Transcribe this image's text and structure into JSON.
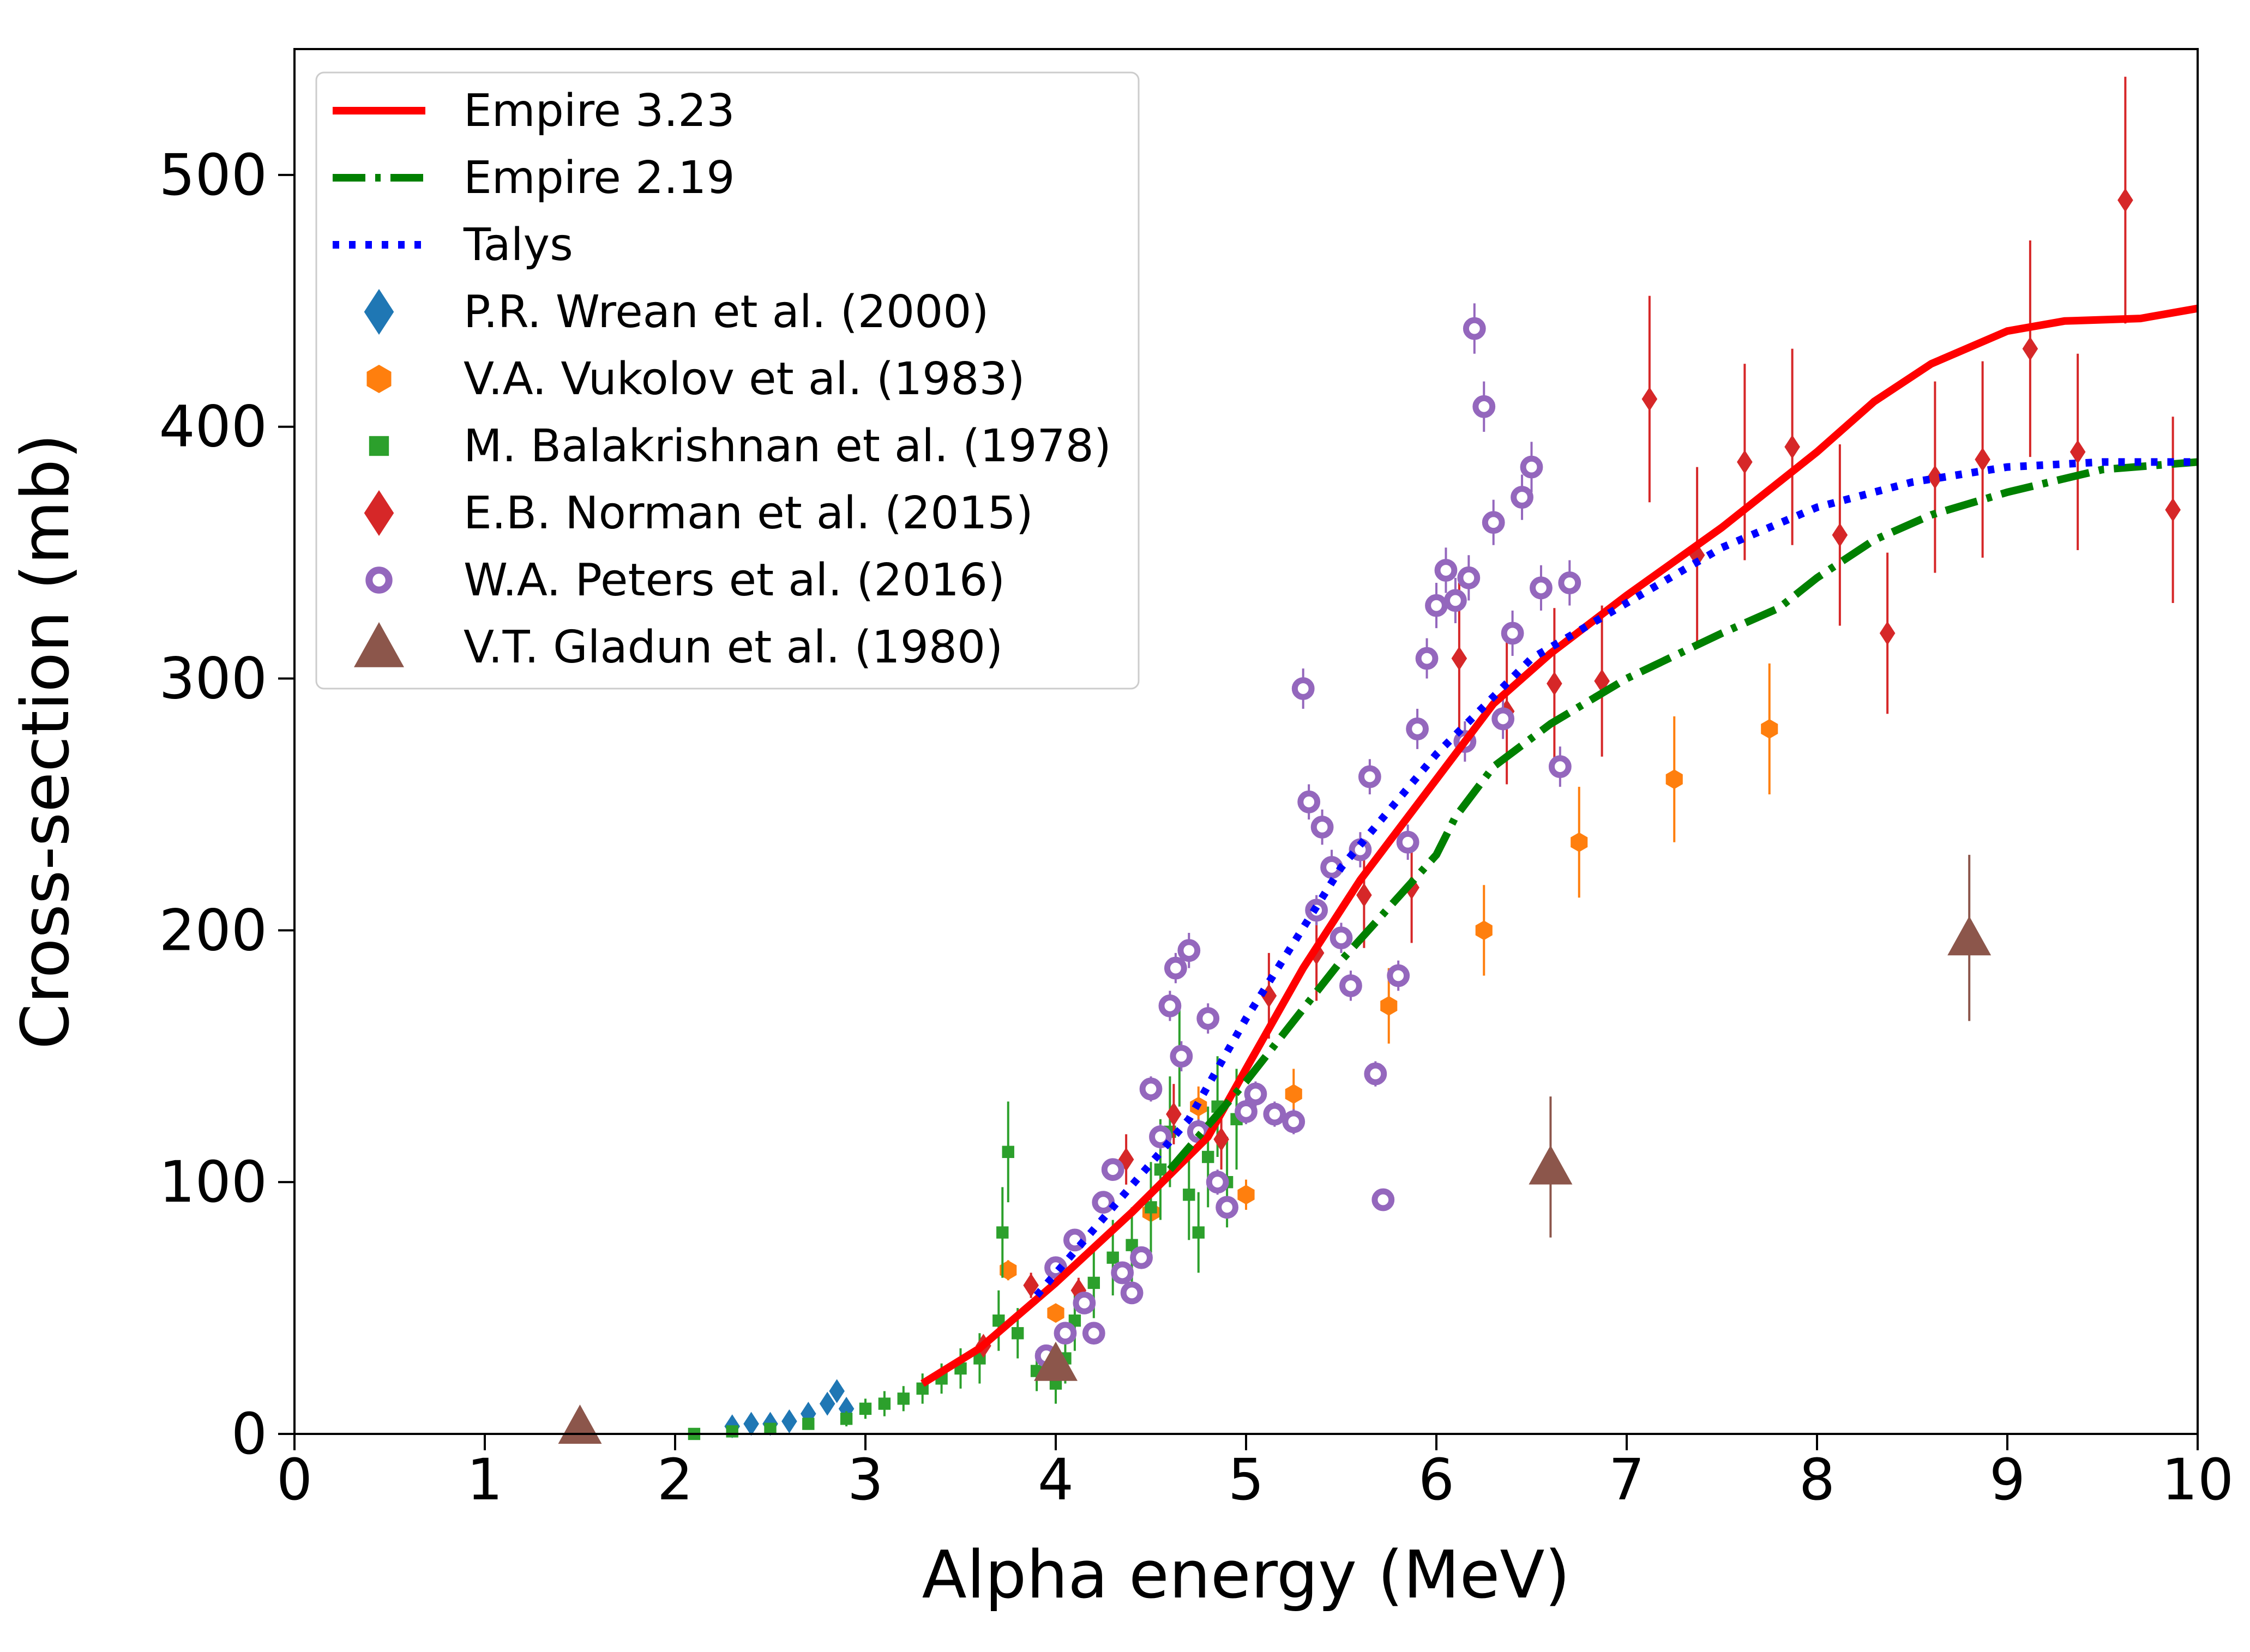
{
  "chart_data": {
    "type": "scatter",
    "title": "",
    "xlabel": "Alpha energy (MeV)",
    "ylabel": "Cross-section (mb)",
    "xlim": [
      0,
      10
    ],
    "ylim": [
      0,
      550
    ],
    "xticks": [
      "0",
      "1",
      "2",
      "3",
      "4",
      "5",
      "6",
      "7",
      "8",
      "9",
      "10"
    ],
    "yticks": [
      "0",
      "100",
      "200",
      "300",
      "400",
      "500"
    ],
    "grid": false,
    "legend_position": "top-left",
    "colors": {
      "empire323": "#ff0000",
      "empire219": "#008000",
      "talys": "#0000ff",
      "wrean": "#1f77b4",
      "vukolov": "#ff7f0e",
      "balakrishnan": "#2ca02c",
      "norman": "#d62728",
      "peters": "#9467bd",
      "gladun": "#8c564b"
    },
    "lines": [
      {
        "name": "Empire 3.23",
        "style": "solid",
        "color": "#ff0000",
        "x": [
          3.3,
          3.6,
          4.0,
          4.4,
          4.8,
          5.0,
          5.3,
          5.6,
          6.0,
          6.3,
          6.6,
          7.0,
          7.5,
          8.0,
          8.3,
          8.6,
          9.0,
          9.3,
          9.7,
          10.0
        ],
        "y": [
          20,
          34,
          60,
          88,
          118,
          145,
          185,
          220,
          260,
          290,
          310,
          333,
          360,
          390,
          410,
          425,
          438,
          442,
          443,
          447
        ]
      },
      {
        "name": "Empire 2.19",
        "style": "dashdot",
        "color": "#008000",
        "x": [
          4.6,
          5.0,
          5.5,
          6.0,
          6.1,
          6.3,
          6.6,
          7.0,
          7.5,
          7.8,
          8.0,
          8.3,
          8.6,
          9.0,
          9.5,
          10.0
        ],
        "y": [
          105,
          140,
          188,
          230,
          245,
          265,
          282,
          300,
          318,
          328,
          340,
          355,
          365,
          374,
          383,
          386
        ]
      },
      {
        "name": "Talys",
        "style": "dotted",
        "color": "#0000ff",
        "x": [
          3.9,
          4.3,
          4.7,
          5.0,
          5.5,
          6.0,
          6.5,
          7.0,
          7.5,
          8.0,
          8.5,
          9.0,
          9.5,
          10.0
        ],
        "y": [
          55,
          90,
          125,
          165,
          225,
          270,
          308,
          330,
          352,
          368,
          378,
          384,
          386,
          386
        ]
      }
    ],
    "series": [
      {
        "name": "P.R. Wrean et al. (2000)",
        "marker": "diamond",
        "color": "#1f77b4",
        "x": [
          2.3,
          2.4,
          2.5,
          2.6,
          2.7,
          2.8,
          2.85,
          2.9
        ],
        "y": [
          3,
          4,
          4,
          5,
          8,
          12,
          17,
          10
        ]
      },
      {
        "name": "V.A. Vukolov et al. (1983)",
        "marker": "hexagon",
        "color": "#ff7f0e",
        "x": [
          3.75,
          4.0,
          4.5,
          4.75,
          5.0,
          5.25,
          5.75,
          6.25,
          6.75,
          7.25,
          7.75
        ],
        "y": [
          65,
          48,
          88,
          130,
          95,
          135,
          170,
          200,
          235,
          260,
          280
        ],
        "yerr": [
          4,
          3,
          5,
          8,
          6,
          10,
          15,
          18,
          22,
          25,
          26
        ]
      },
      {
        "name": "M. Balakrishnan et al. (1978)",
        "marker": "square",
        "color": "#2ca02c",
        "x": [
          2.1,
          2.3,
          2.5,
          2.7,
          2.9,
          3.0,
          3.1,
          3.2,
          3.3,
          3.4,
          3.5,
          3.6,
          3.7,
          3.72,
          3.75,
          3.8,
          3.9,
          4.0,
          4.05,
          4.1,
          4.2,
          4.3,
          4.4,
          4.5,
          4.55,
          4.6,
          4.65,
          4.7,
          4.75,
          4.8,
          4.85,
          4.9,
          4.95
        ],
        "y": [
          0,
          1,
          2,
          4,
          6,
          10,
          12,
          14,
          18,
          22,
          26,
          30,
          45,
          80,
          112,
          40,
          25,
          20,
          30,
          45,
          60,
          70,
          75,
          90,
          105,
          120,
          150,
          95,
          80,
          110,
          130,
          100,
          125
        ],
        "yerr": [
          1,
          1,
          1,
          2,
          3,
          4,
          5,
          5,
          6,
          6,
          8,
          10,
          12,
          18,
          20,
          10,
          8,
          8,
          10,
          12,
          14,
          15,
          15,
          18,
          20,
          22,
          20,
          18,
          16,
          20,
          20,
          18,
          20
        ]
      },
      {
        "name": "E.B. Norman et al. (2015)",
        "marker": "diamond",
        "color": "#d62728",
        "x": [
          3.62,
          3.87,
          4.12,
          4.37,
          4.62,
          4.87,
          5.12,
          5.37,
          5.62,
          5.87,
          6.12,
          6.37,
          6.62,
          6.87,
          7.12,
          7.37,
          7.62,
          7.87,
          8.12,
          8.37,
          8.62,
          8.87,
          9.12,
          9.37,
          9.62,
          9.87
        ],
        "y": [
          35,
          59,
          57,
          109,
          127,
          117,
          174,
          191,
          214,
          217,
          308,
          287,
          298,
          299,
          411,
          349,
          386,
          392,
          357,
          318,
          380,
          387,
          431,
          390,
          490,
          367
        ],
        "yerr": [
          3,
          5,
          5,
          10,
          12,
          12,
          17,
          19,
          21,
          22,
          30,
          29,
          30,
          30,
          41,
          35,
          39,
          39,
          36,
          32,
          38,
          39,
          43,
          39,
          49,
          37
        ]
      },
      {
        "name": "W.A. Peters et al. (2016)",
        "marker": "ring",
        "color": "#9467bd",
        "x": [
          3.95,
          4.0,
          4.05,
          4.1,
          4.15,
          4.2,
          4.25,
          4.3,
          4.35,
          4.4,
          4.45,
          4.5,
          4.55,
          4.6,
          4.63,
          4.66,
          4.7,
          4.75,
          4.8,
          4.85,
          4.9,
          5.0,
          5.05,
          5.15,
          5.25,
          5.3,
          5.33,
          5.37,
          5.4,
          5.45,
          5.5,
          5.55,
          5.6,
          5.65,
          5.68,
          5.72,
          5.8,
          5.85,
          5.9,
          5.95,
          6.0,
          6.05,
          6.1,
          6.15,
          6.17,
          6.2,
          6.25,
          6.3,
          6.35,
          6.4,
          6.45,
          6.5,
          6.55,
          6.65,
          6.7
        ],
        "y": [
          31,
          66,
          40,
          77,
          52,
          40,
          92,
          105,
          64,
          56,
          70,
          137,
          118,
          170,
          185,
          150,
          192,
          120,
          165,
          100,
          90,
          128,
          135,
          127,
          124,
          296,
          251,
          208,
          241,
          225,
          197,
          178,
          232,
          261,
          143,
          93,
          182,
          235,
          280,
          308,
          329,
          343,
          331,
          275,
          340,
          439,
          408,
          362,
          284,
          318,
          372,
          384,
          336,
          265,
          338
        ],
        "yerr": [
          2,
          3,
          2,
          3,
          3,
          2,
          4,
          4,
          3,
          3,
          3,
          5,
          5,
          6,
          6,
          6,
          7,
          5,
          6,
          5,
          4,
          5,
          5,
          5,
          5,
          8,
          7,
          6,
          7,
          7,
          6,
          6,
          7,
          7,
          5,
          4,
          6,
          7,
          8,
          8,
          9,
          9,
          9,
          8,
          9,
          10,
          10,
          9,
          8,
          9,
          9,
          10,
          9,
          8,
          9
        ]
      },
      {
        "name": "V.T. Gladun et al. (1980)",
        "marker": "triangle",
        "color": "#8c564b",
        "x": [
          1.5,
          4.0,
          6.6,
          8.8
        ],
        "y": [
          3,
          28,
          106,
          197
        ],
        "yerr": [
          2,
          5,
          28,
          33
        ]
      }
    ]
  }
}
